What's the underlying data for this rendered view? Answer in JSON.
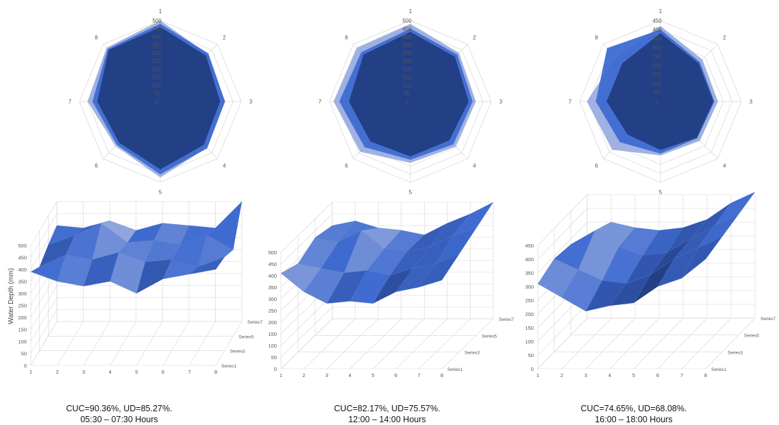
{
  "chart_data": [
    {
      "type": "radar",
      "axes": [
        "1",
        "2",
        "3",
        "4",
        "5",
        "6",
        "7",
        "8"
      ],
      "radial_ticks": [
        "500",
        "450",
        "400",
        "350",
        "300",
        "250",
        "200",
        "150",
        "100",
        "50",
        "0"
      ],
      "rmax": 500,
      "series": [
        {
          "values": [
            500,
            415,
            395,
            405,
            470,
            390,
            450,
            470
          ]
        },
        {
          "values": [
            480,
            420,
            400,
            410,
            450,
            380,
            420,
            460
          ]
        },
        {
          "values": [
            460,
            400,
            370,
            380,
            420,
            360,
            390,
            450
          ]
        }
      ]
    },
    {
      "type": "radar",
      "axes": [
        "1",
        "2",
        "3",
        "4",
        "5",
        "6",
        "7",
        "8"
      ],
      "radial_ticks": [
        "500",
        "450",
        "400",
        "350",
        "300",
        "250",
        "200",
        "150",
        "100",
        "50",
        "0"
      ],
      "rmax": 500,
      "series": [
        {
          "values": [
            480,
            425,
            405,
            395,
            380,
            440,
            475,
            470
          ]
        },
        {
          "values": [
            450,
            410,
            385,
            375,
            360,
            400,
            440,
            430
          ]
        },
        {
          "values": [
            430,
            390,
            360,
            340,
            340,
            350,
            380,
            410
          ]
        }
      ]
    },
    {
      "type": "radar",
      "axes": [
        "1",
        "2",
        "3",
        "4",
        "5",
        "6",
        "7",
        "8"
      ],
      "radial_ticks": [
        "450",
        "400",
        "350",
        "300",
        "250",
        "200",
        "150",
        "100",
        "50",
        "0"
      ],
      "rmax": 450,
      "series": [
        {
          "values": [
            420,
            330,
            320,
            310,
            300,
            380,
            410,
            350
          ]
        },
        {
          "values": [
            400,
            310,
            300,
            290,
            290,
            320,
            360,
            420
          ]
        },
        {
          "values": [
            380,
            300,
            295,
            285,
            270,
            260,
            300,
            300
          ]
        }
      ]
    },
    {
      "type": "surface3d",
      "ylabel": "Water Depth (mm)",
      "x": [
        "1",
        "2",
        "3",
        "4",
        "5",
        "6",
        "7",
        "8"
      ],
      "depth": [
        "Series1",
        "Series3",
        "Series5",
        "Series7"
      ],
      "y_ticks": [
        "500",
        "450",
        "400",
        "350",
        "300",
        "250",
        "200",
        "150",
        "100",
        "50",
        "0"
      ],
      "ymax": 500,
      "grid": true,
      "series": [
        {
          "name": "Series1",
          "values": [
            390,
            350,
            330,
            350,
            300,
            360,
            380,
            400
          ]
        },
        {
          "name": "Series3",
          "values": [
            350,
            400,
            380,
            410,
            370,
            380,
            350,
            390
          ]
        },
        {
          "name": "Series5",
          "values": [
            380,
            420,
            470,
            390,
            400,
            380,
            420,
            360
          ]
        },
        {
          "name": "Series7",
          "values": [
            400,
            390,
            420,
            380,
            410,
            400,
            390,
            500
          ]
        }
      ]
    },
    {
      "type": "surface3d",
      "x": [
        "1",
        "2",
        "3",
        "4",
        "5",
        "6",
        "7",
        "8"
      ],
      "depth": [
        "Series1",
        "Series3",
        "Series5",
        "Series7"
      ],
      "y_ticks": [
        "500",
        "450",
        "400",
        "350",
        "300",
        "250",
        "200",
        "150",
        "100",
        "50",
        "0"
      ],
      "ymax": 500,
      "grid": true,
      "series": [
        {
          "name": "Series1",
          "values": [
            410,
            330,
            280,
            290,
            280,
            330,
            350,
            380
          ]
        },
        {
          "name": "Series3",
          "values": [
            380,
            360,
            340,
            350,
            330,
            360,
            380,
            420
          ]
        },
        {
          "name": "Series5",
          "values": [
            420,
            400,
            450,
            370,
            360,
            380,
            430,
            460
          ]
        },
        {
          "name": "Series7",
          "values": [
            400,
            420,
            390,
            380,
            360,
            410,
            450,
            500
          ]
        }
      ]
    },
    {
      "type": "surface3d",
      "x": [
        "1",
        "2",
        "3",
        "4",
        "5",
        "6",
        "7",
        "8"
      ],
      "depth": [
        "Series1",
        "Series3",
        "Series5",
        "Series7"
      ],
      "y_ticks": [
        "450",
        "400",
        "350",
        "300",
        "250",
        "200",
        "150",
        "100",
        "50",
        "0"
      ],
      "ymax": 450,
      "grid": true,
      "series": [
        {
          "name": "Series1",
          "values": [
            310,
            260,
            210,
            230,
            240,
            300,
            330,
            400
          ]
        },
        {
          "name": "Series3",
          "values": [
            340,
            300,
            260,
            250,
            280,
            340,
            380,
            420
          ]
        },
        {
          "name": "Series5",
          "values": [
            330,
            380,
            320,
            290,
            300,
            350,
            400,
            440
          ]
        },
        {
          "name": "Series7",
          "values": [
            300,
            350,
            330,
            320,
            330,
            360,
            420,
            460
          ]
        }
      ]
    }
  ],
  "captions": [
    {
      "line1": "CUC=90.36%, UD=85.27%.",
      "line2": "05:30 – 07:30 Hours"
    },
    {
      "line1": "CUC=82.17%, UD=75.57%.",
      "line2": "12:00 – 14:00 Hours"
    },
    {
      "line1": "CUC=74.65%, UD=68.08%.",
      "line2": "16:00 – 18:00 Hours"
    }
  ],
  "colors": {
    "outer": "#8fa5dc",
    "middle": "#3f6bd1",
    "inner": "#233f86",
    "grid": "#d4d4d4"
  }
}
